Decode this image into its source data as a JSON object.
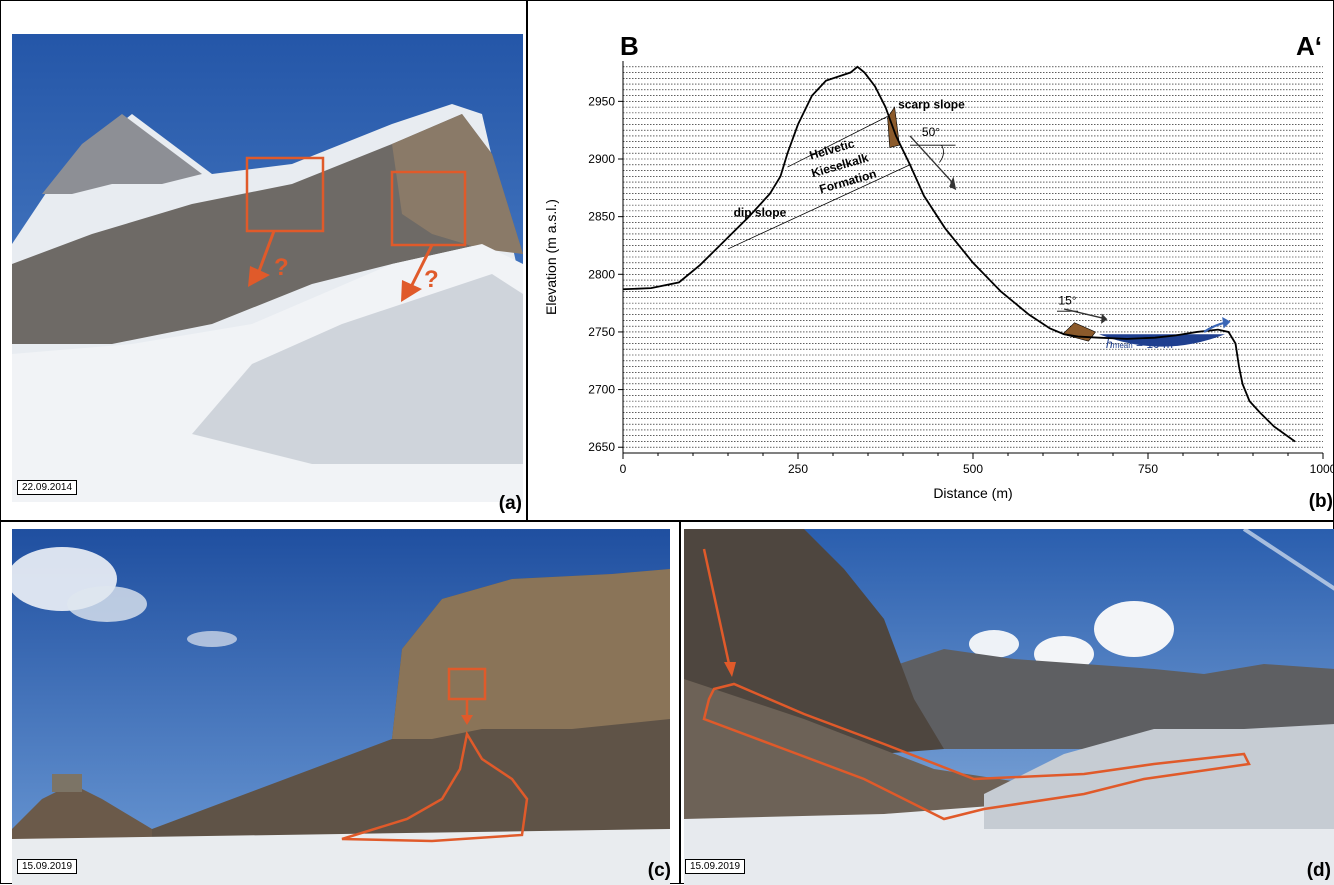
{
  "panels": {
    "a": {
      "label": "(a)",
      "date": "22.09.2014",
      "marker": "?"
    },
    "b": {
      "label": "(b)",
      "corner_left": "B",
      "corner_right": "A‘"
    },
    "c": {
      "label": "(c)",
      "date": "15.09.2019"
    },
    "d": {
      "label": "(d)",
      "date": "15.09.2019"
    }
  },
  "chart_data": {
    "type": "line",
    "xlabel": "Distance (m)",
    "ylabel": "Elevation (m a.s.l.)",
    "xlim": [
      0,
      1000
    ],
    "ylim": [
      2645,
      2985
    ],
    "xticks": [
      0,
      250,
      500,
      750,
      1000
    ],
    "yticks": [
      2650,
      2700,
      2750,
      2800,
      2850,
      2900,
      2950
    ],
    "grid": "horizontal dashed lines every 5 m",
    "profile": {
      "x": [
        0,
        40,
        80,
        110,
        130,
        150,
        180,
        210,
        225,
        235,
        250,
        270,
        290,
        310,
        325,
        335,
        345,
        360,
        375,
        390,
        410,
        430,
        460,
        500,
        540,
        580,
        610,
        630,
        650,
        680,
        720,
        760,
        790,
        820,
        850,
        865,
        875,
        880,
        885,
        895,
        910,
        930,
        960
      ],
      "y": [
        2787,
        2788,
        2793,
        2808,
        2820,
        2832,
        2850,
        2870,
        2885,
        2905,
        2930,
        2955,
        2968,
        2972,
        2975,
        2980,
        2975,
        2963,
        2945,
        2920,
        2895,
        2868,
        2840,
        2810,
        2785,
        2765,
        2753,
        2748,
        2746,
        2745,
        2744,
        2745,
        2747,
        2750,
        2752,
        2750,
        2740,
        2720,
        2705,
        2690,
        2680,
        2668,
        2655
      ]
    },
    "lake": {
      "x": [
        680,
        860
      ],
      "surface": 2748,
      "label": "h",
      "label_sub": "mean",
      "label_value": " = 10 m"
    },
    "annotations": {
      "scarp": "scarp slope",
      "dip": "dip slope",
      "formation": [
        "Helvetic",
        "Kieselkalk",
        "Formation"
      ],
      "angle_scarp": "50°",
      "angle_lake": "15°"
    },
    "colors": {
      "deposit": "#8b5a2b",
      "lake": "#1f3f8f",
      "arrow": "#3a66b5",
      "profile": "#000000"
    }
  }
}
